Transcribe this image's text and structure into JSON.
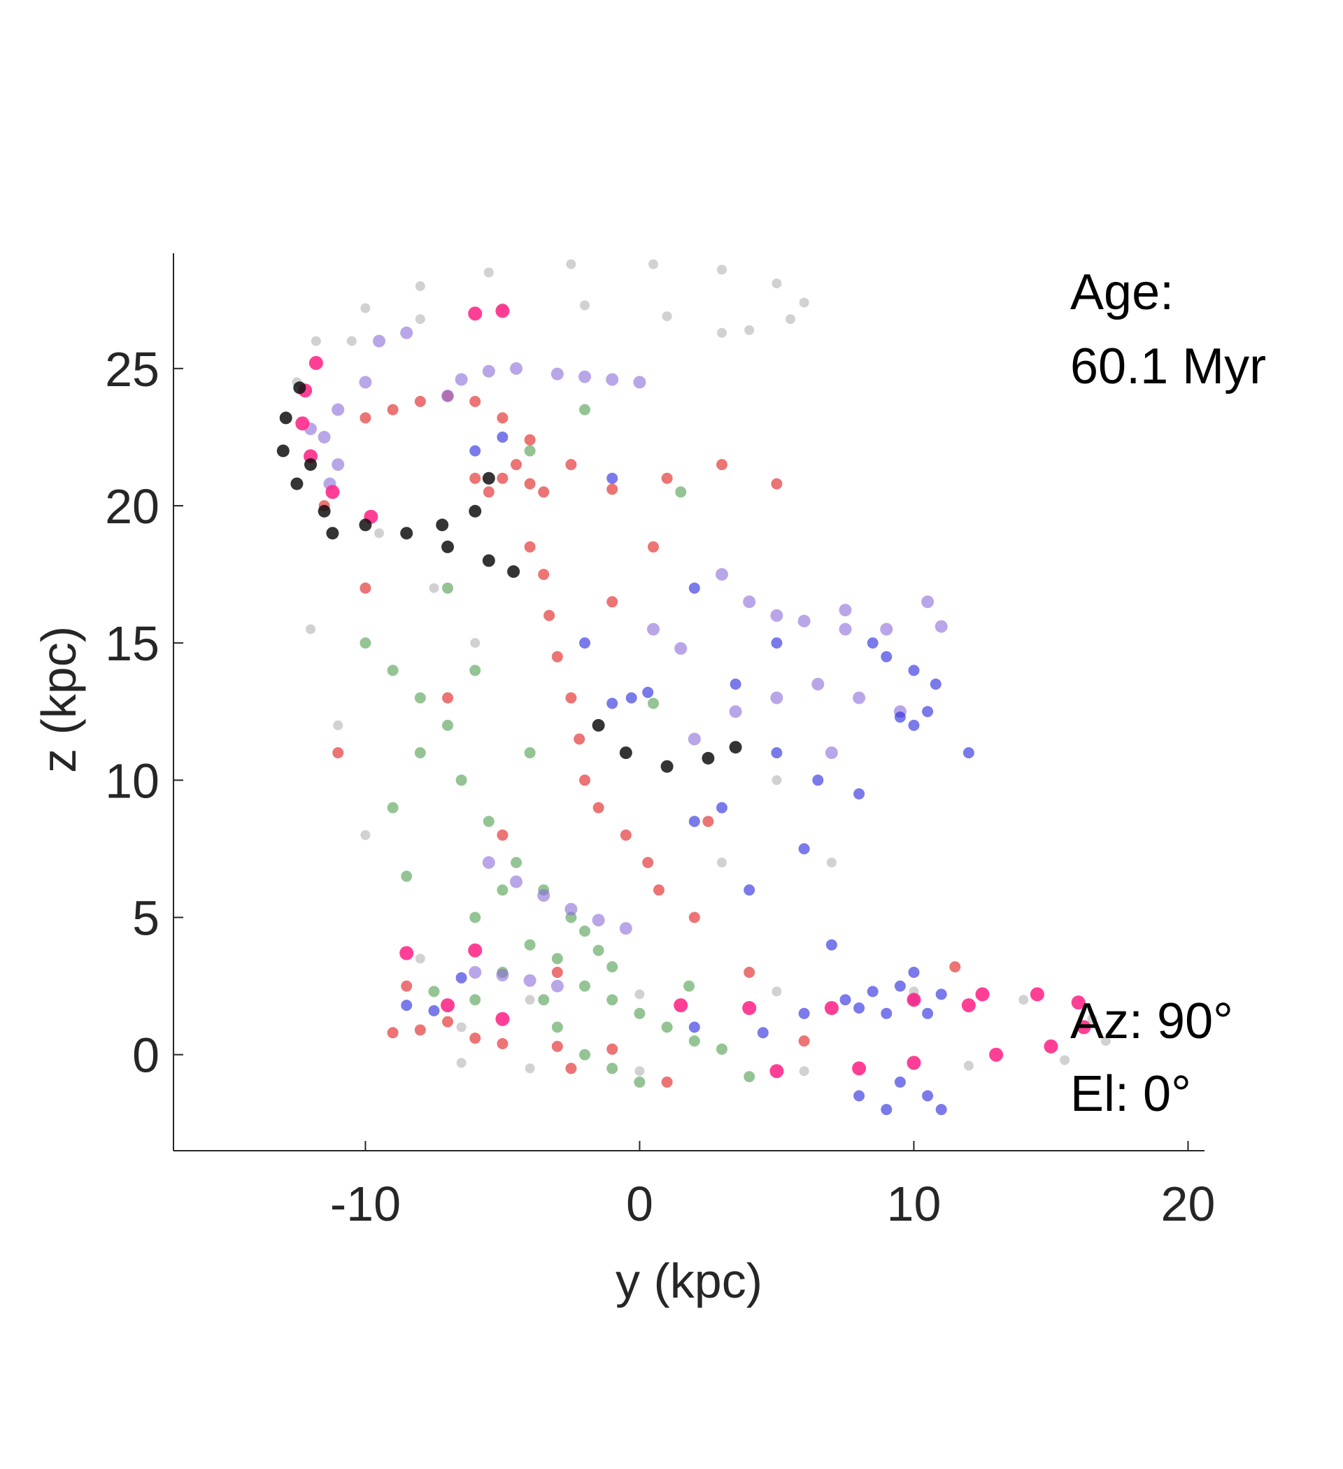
{
  "chart_data": {
    "type": "scatter",
    "title": "",
    "xlabel": "y (kpc)",
    "ylabel": "z (kpc)",
    "xlim": [
      -17,
      20.6
    ],
    "ylim": [
      -3.5,
      29.2
    ],
    "xticks": [
      -10,
      0,
      10,
      20
    ],
    "yticks": [
      0,
      5,
      10,
      15,
      20,
      25
    ],
    "xtick_labels": [
      "-10",
      "0",
      "10",
      "20"
    ],
    "ytick_labels": [
      "0",
      "5",
      "10",
      "15",
      "20",
      "25"
    ],
    "grid": false,
    "legend": "none",
    "annotations": {
      "age_label": "Age:",
      "age_value": "60.1 Myr",
      "azimuth": "Az: 90°",
      "elevation": "El: 0°"
    },
    "colors": {
      "gray": "#9a9a9a",
      "black": "#111111",
      "magenta": "#ff2a8a",
      "red": "#e01818",
      "green": "#2a8a2a",
      "blue": "#2222dd",
      "purple": "#8a6ad8",
      "axis": "#262626"
    },
    "series": [
      {
        "color": "gray",
        "points": [
          [
            -12.5,
            24.5
          ],
          [
            -11.8,
            26.0
          ],
          [
            -10.0,
            27.2
          ],
          [
            -8.0,
            28.0
          ],
          [
            -5.5,
            28.5
          ],
          [
            -2.5,
            28.8
          ],
          [
            0.5,
            28.8
          ],
          [
            3.0,
            28.6
          ],
          [
            5.0,
            28.1
          ],
          [
            6.0,
            27.4
          ],
          [
            5.5,
            26.8
          ],
          [
            4.0,
            26.4
          ],
          [
            3.0,
            26.3
          ],
          [
            1.0,
            26.9
          ],
          [
            -2.0,
            27.3
          ],
          [
            -5.0,
            27.2
          ],
          [
            -8.0,
            26.8
          ],
          [
            -10.5,
            26.0
          ],
          [
            -6.5,
            1.0
          ],
          [
            -4.0,
            2.0
          ],
          [
            0.0,
            2.2
          ],
          [
            5.0,
            2.3
          ],
          [
            10.0,
            2.3
          ],
          [
            14.0,
            2.0
          ],
          [
            16.5,
            1.3
          ],
          [
            17.0,
            0.5
          ],
          [
            15.5,
            -0.2
          ],
          [
            12.0,
            -0.4
          ],
          [
            6.0,
            -0.6
          ],
          [
            0.0,
            -0.6
          ],
          [
            -4.0,
            -0.5
          ],
          [
            -6.5,
            -0.3
          ],
          [
            -8.0,
            3.5
          ],
          [
            -11.0,
            12.0
          ],
          [
            -10.0,
            8.0
          ],
          [
            -6.0,
            15.0
          ],
          [
            3.0,
            7.0
          ],
          [
            5.0,
            10.0
          ],
          [
            -9.5,
            19.0
          ],
          [
            -7.5,
            17.0
          ],
          [
            -12.0,
            15.5
          ],
          [
            7.0,
            7.0
          ]
        ]
      },
      {
        "color": "black",
        "points": [
          [
            -12.4,
            24.3
          ],
          [
            -12.9,
            23.2
          ],
          [
            -13.0,
            22.0
          ],
          [
            -12.5,
            20.8
          ],
          [
            -11.5,
            19.8
          ],
          [
            -10.0,
            19.3
          ],
          [
            -8.5,
            19.0
          ],
          [
            -7.0,
            18.5
          ],
          [
            -5.5,
            18.0
          ],
          [
            -4.6,
            17.6
          ],
          [
            -7.2,
            19.3
          ],
          [
            -6.0,
            19.8
          ],
          [
            -5.5,
            21.0
          ],
          [
            -0.5,
            11.0
          ],
          [
            1.0,
            10.5
          ],
          [
            2.5,
            10.8
          ],
          [
            3.5,
            11.2
          ],
          [
            -1.5,
            12.0
          ],
          [
            -11.2,
            19.0
          ],
          [
            -12.0,
            21.5
          ]
        ]
      },
      {
        "color": "magenta",
        "points": [
          [
            -11.8,
            25.2
          ],
          [
            -12.2,
            24.2
          ],
          [
            -12.3,
            23.0
          ],
          [
            -12.0,
            21.8
          ],
          [
            -11.2,
            20.5
          ],
          [
            -9.8,
            19.6
          ],
          [
            -6.0,
            27.0
          ],
          [
            -5.0,
            27.1
          ],
          [
            -8.5,
            3.7
          ],
          [
            -6.0,
            3.8
          ],
          [
            -7.0,
            1.8
          ],
          [
            -5.0,
            1.3
          ],
          [
            1.5,
            1.8
          ],
          [
            4.0,
            1.7
          ],
          [
            7.0,
            1.7
          ],
          [
            10.0,
            2.0
          ],
          [
            12.5,
            2.2
          ],
          [
            14.5,
            2.2
          ],
          [
            16.0,
            1.9
          ],
          [
            16.2,
            1.0
          ],
          [
            15.0,
            0.3
          ],
          [
            13.0,
            0.0
          ],
          [
            10.0,
            -0.3
          ],
          [
            8.0,
            -0.5
          ],
          [
            5.0,
            -0.6
          ],
          [
            12.0,
            1.8
          ]
        ]
      },
      {
        "color": "red",
        "points": [
          [
            -10.0,
            23.2
          ],
          [
            -9.0,
            23.5
          ],
          [
            -8.0,
            23.8
          ],
          [
            -7.0,
            24.0
          ],
          [
            -6.0,
            23.8
          ],
          [
            -5.0,
            23.2
          ],
          [
            -4.0,
            22.4
          ],
          [
            -2.5,
            21.5
          ],
          [
            -1.0,
            20.6
          ],
          [
            1.0,
            21.0
          ],
          [
            3.0,
            21.5
          ],
          [
            5.0,
            20.8
          ],
          [
            -6.0,
            21.0
          ],
          [
            -5.0,
            21.0
          ],
          [
            -4.0,
            20.8
          ],
          [
            -3.5,
            20.5
          ],
          [
            -5.5,
            20.5
          ],
          [
            -4.5,
            21.5
          ],
          [
            -4.0,
            18.5
          ],
          [
            -3.5,
            17.5
          ],
          [
            -3.3,
            16.0
          ],
          [
            -3.0,
            14.5
          ],
          [
            -2.5,
            13.0
          ],
          [
            -2.2,
            11.5
          ],
          [
            -2.0,
            10.0
          ],
          [
            -1.5,
            9.0
          ],
          [
            -0.5,
            8.0
          ],
          [
            0.3,
            7.0
          ],
          [
            0.7,
            6.0
          ],
          [
            -7.0,
            1.2
          ],
          [
            -8.0,
            0.9
          ],
          [
            -6.0,
            0.6
          ],
          [
            -5.0,
            0.4
          ],
          [
            -3.0,
            0.3
          ],
          [
            -1.0,
            0.2
          ],
          [
            -9.0,
            0.8
          ],
          [
            -8.5,
            2.5
          ],
          [
            -10.0,
            17.0
          ],
          [
            -11.0,
            11.0
          ],
          [
            -5.0,
            8.0
          ],
          [
            2.0,
            5.0
          ],
          [
            -3.0,
            3.0
          ],
          [
            0.5,
            18.5
          ],
          [
            -7.0,
            13.0
          ],
          [
            -1.0,
            16.5
          ],
          [
            2.5,
            8.5
          ],
          [
            -11.5,
            20.0
          ],
          [
            4.0,
            3.0
          ],
          [
            6.0,
            0.5
          ],
          [
            1.0,
            -1.0
          ],
          [
            -2.5,
            -0.5
          ],
          [
            11.5,
            3.2
          ]
        ]
      },
      {
        "color": "green",
        "points": [
          [
            -10.0,
            15.0
          ],
          [
            -9.0,
            14.0
          ],
          [
            -8.0,
            13.0
          ],
          [
            -7.0,
            12.0
          ],
          [
            -6.5,
            10.0
          ],
          [
            -5.5,
            8.5
          ],
          [
            -4.5,
            7.0
          ],
          [
            -3.5,
            6.0
          ],
          [
            -2.5,
            5.0
          ],
          [
            -2.0,
            4.5
          ],
          [
            -1.5,
            3.8
          ],
          [
            -1.0,
            3.2
          ],
          [
            -4.0,
            4.0
          ],
          [
            -3.0,
            3.5
          ],
          [
            -2.0,
            2.5
          ],
          [
            -1.0,
            2.0
          ],
          [
            0.0,
            1.5
          ],
          [
            1.0,
            1.0
          ],
          [
            2.0,
            0.5
          ],
          [
            -3.0,
            1.0
          ],
          [
            -2.0,
            0.0
          ],
          [
            -1.0,
            -0.5
          ],
          [
            0.0,
            -1.0
          ],
          [
            -7.5,
            2.3
          ],
          [
            -6.0,
            2.0
          ],
          [
            -5.0,
            3.0
          ],
          [
            -8.0,
            11.0
          ],
          [
            -9.0,
            9.0
          ],
          [
            -6.0,
            14.0
          ],
          [
            0.5,
            12.8
          ],
          [
            -7.0,
            17.0
          ],
          [
            -4.0,
            22.0
          ],
          [
            -2.0,
            23.5
          ],
          [
            1.5,
            20.5
          ],
          [
            3.0,
            0.2
          ],
          [
            4.0,
            -0.8
          ],
          [
            -3.5,
            2.0
          ],
          [
            -5.0,
            6.0
          ],
          [
            -6.0,
            5.0
          ],
          [
            -8.5,
            6.5
          ],
          [
            -4.0,
            11.0
          ],
          [
            1.8,
            2.5
          ]
        ]
      },
      {
        "color": "blue",
        "points": [
          [
            7.5,
            2.0
          ],
          [
            8.5,
            2.3
          ],
          [
            9.5,
            2.5
          ],
          [
            10.0,
            2.0
          ],
          [
            10.5,
            1.5
          ],
          [
            9.0,
            1.5
          ],
          [
            8.0,
            1.7
          ],
          [
            11.0,
            2.2
          ],
          [
            9.5,
            -1.0
          ],
          [
            10.5,
            -1.5
          ],
          [
            11.0,
            -2.0
          ],
          [
            9.0,
            -2.0
          ],
          [
            -1.0,
            12.8
          ],
          [
            -0.3,
            13.0
          ],
          [
            0.3,
            13.2
          ],
          [
            8.5,
            15.0
          ],
          [
            9.0,
            14.5
          ],
          [
            10.0,
            14.0
          ],
          [
            10.8,
            13.5
          ],
          [
            10.5,
            12.5
          ],
          [
            10.0,
            12.0
          ],
          [
            9.5,
            12.3
          ],
          [
            5.0,
            11.0
          ],
          [
            6.5,
            10.0
          ],
          [
            8.0,
            9.5
          ],
          [
            3.0,
            9.0
          ],
          [
            2.0,
            8.5
          ],
          [
            4.0,
            6.0
          ],
          [
            7.0,
            4.0
          ],
          [
            6.0,
            1.5
          ],
          [
            2.0,
            1.0
          ],
          [
            4.5,
            0.8
          ],
          [
            -5.0,
            22.5
          ],
          [
            -6.0,
            22.0
          ],
          [
            -1.0,
            21.0
          ],
          [
            -8.5,
            1.8
          ],
          [
            -7.5,
            1.6
          ],
          [
            -6.5,
            2.8
          ],
          [
            2.0,
            17.0
          ],
          [
            5.0,
            15.0
          ],
          [
            -2.0,
            15.0
          ],
          [
            12.0,
            11.0
          ],
          [
            3.5,
            13.5
          ],
          [
            6.0,
            7.5
          ],
          [
            8.0,
            -1.5
          ],
          [
            10.0,
            3.0
          ]
        ]
      },
      {
        "color": "purple",
        "points": [
          [
            -3.0,
            24.8
          ],
          [
            -2.0,
            24.7
          ],
          [
            -1.0,
            24.6
          ],
          [
            0.0,
            24.5
          ],
          [
            -11.0,
            23.5
          ],
          [
            -11.5,
            22.5
          ],
          [
            -11.0,
            21.5
          ],
          [
            -7.0,
            24.0
          ],
          [
            -6.5,
            24.6
          ],
          [
            -5.5,
            24.9
          ],
          [
            -4.5,
            25.0
          ],
          [
            -9.5,
            26.0
          ],
          [
            -8.5,
            26.3
          ],
          [
            3.0,
            17.5
          ],
          [
            4.0,
            16.5
          ],
          [
            5.0,
            16.0
          ],
          [
            6.0,
            15.8
          ],
          [
            7.5,
            15.5
          ],
          [
            9.0,
            15.5
          ],
          [
            11.0,
            15.6
          ],
          [
            1.5,
            14.8
          ],
          [
            0.5,
            15.5
          ],
          [
            3.5,
            12.5
          ],
          [
            5.0,
            13.0
          ],
          [
            6.5,
            13.5
          ],
          [
            8.0,
            13.0
          ],
          [
            9.5,
            12.5
          ],
          [
            -5.5,
            7.0
          ],
          [
            -4.5,
            6.3
          ],
          [
            -3.5,
            5.8
          ],
          [
            -2.5,
            5.3
          ],
          [
            -1.5,
            4.9
          ],
          [
            -0.5,
            4.6
          ],
          [
            -6.0,
            3.0
          ],
          [
            -5.0,
            2.9
          ],
          [
            -4.0,
            2.7
          ],
          [
            -3.0,
            2.5
          ],
          [
            -10.0,
            24.5
          ],
          [
            -12.0,
            22.8
          ],
          [
            -11.3,
            20.8
          ],
          [
            7.5,
            16.2
          ],
          [
            10.5,
            16.5
          ],
          [
            2.0,
            11.5
          ],
          [
            7.0,
            11.0
          ]
        ]
      }
    ]
  }
}
